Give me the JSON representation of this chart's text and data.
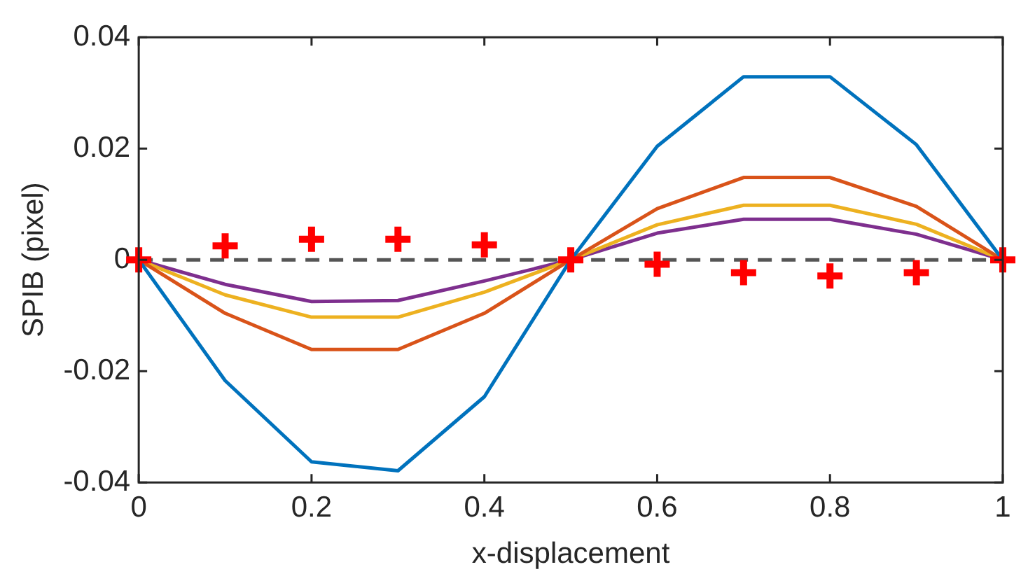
{
  "chart_data": {
    "type": "line",
    "xlabel": "x-displacement",
    "ylabel": "SPIB (pixel)",
    "x": [
      0,
      0.1,
      0.2,
      0.3,
      0.4,
      0.5,
      0.6,
      0.7,
      0.8,
      0.9,
      1
    ],
    "series": [
      {
        "color": "#0072bd",
        "values": [
          0,
          -0.0217,
          -0.0363,
          -0.0379,
          -0.0246,
          0,
          0.0204,
          0.0329,
          0.0329,
          0.0207,
          0
        ]
      },
      {
        "color": "#d95319",
        "values": [
          0,
          -0.0096,
          -0.0161,
          -0.0161,
          -0.0096,
          0,
          0.0092,
          0.0148,
          0.0148,
          0.0096,
          0
        ]
      },
      {
        "color": "#edb120",
        "values": [
          0,
          -0.0063,
          -0.0103,
          -0.0103,
          -0.0058,
          0,
          0.0063,
          0.0098,
          0.0098,
          0.0064,
          0
        ]
      },
      {
        "color": "#7e2f8e",
        "values": [
          0,
          -0.0044,
          -0.0075,
          -0.0073,
          -0.0038,
          0,
          0.0048,
          0.0073,
          0.0073,
          0.0046,
          0
        ]
      },
      {
        "type": "scatter",
        "marker": "cross",
        "color": "#ff0000",
        "values": [
          0,
          0.0025,
          0.0037,
          0.0037,
          0.0027,
          0,
          -0.0008,
          -0.0023,
          -0.0029,
          -0.0023,
          0
        ]
      }
    ],
    "ref_lines": [
      {
        "axis": "y",
        "value": 0,
        "color": "#555555",
        "line_style": "dashed"
      }
    ],
    "xlim": [
      0,
      1
    ],
    "xticks": [
      0,
      0.2,
      0.4,
      0.6,
      0.8,
      1
    ],
    "ylim": [
      -0.04,
      0.04
    ],
    "yticks": [
      -0.04,
      -0.02,
      0,
      0.02,
      0.04
    ],
    "grid": false,
    "legend": false,
    "marker": "none",
    "line_style": "solid"
  }
}
